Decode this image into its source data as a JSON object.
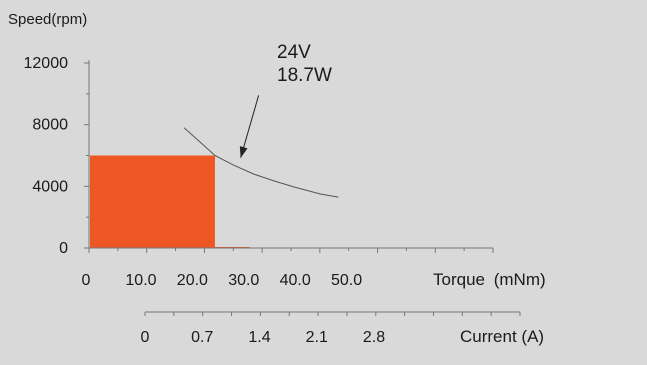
{
  "chart_data": {
    "type": "area",
    "ylabel": "Speed(rpm)",
    "xlabel": "Torque",
    "xlabel_unit": "(mNm)",
    "x2label": "Current (A)",
    "y_ticks": [
      0,
      4000,
      8000,
      12000
    ],
    "y_tick_labels": [
      "0",
      "4000",
      "8000",
      "12000"
    ],
    "ylim": [
      0,
      12000
    ],
    "x_ticks": [
      0,
      10,
      20,
      30,
      40,
      50
    ],
    "x_tick_labels": [
      "0",
      "10.0",
      "20.0",
      "30.0",
      "40.0",
      "50.0"
    ],
    "xlim": [
      0,
      70
    ],
    "x2_ticks": [
      0,
      0.7,
      1.4,
      2.1,
      2.8
    ],
    "x2_tick_labels": [
      "0",
      "0.7",
      "1.4",
      "2.1",
      "2.8"
    ],
    "x2lim": [
      0,
      4.0
    ],
    "continuous_region": {
      "torque_max": 24.5,
      "speed": 6000,
      "color": "#ee5624"
    },
    "power_curve": {
      "label_line1": "24V",
      "label_line2": "18.7W",
      "x": [
        18.5,
        22,
        24.5,
        28,
        32,
        36,
        40,
        45,
        48.5
      ],
      "y": [
        7800,
        6750,
        6000,
        5400,
        4800,
        4350,
        3950,
        3500,
        3300
      ]
    },
    "annotation_arrow": {
      "from": [
        33,
        9900
      ],
      "to": [
        29.5,
        5850
      ]
    }
  }
}
